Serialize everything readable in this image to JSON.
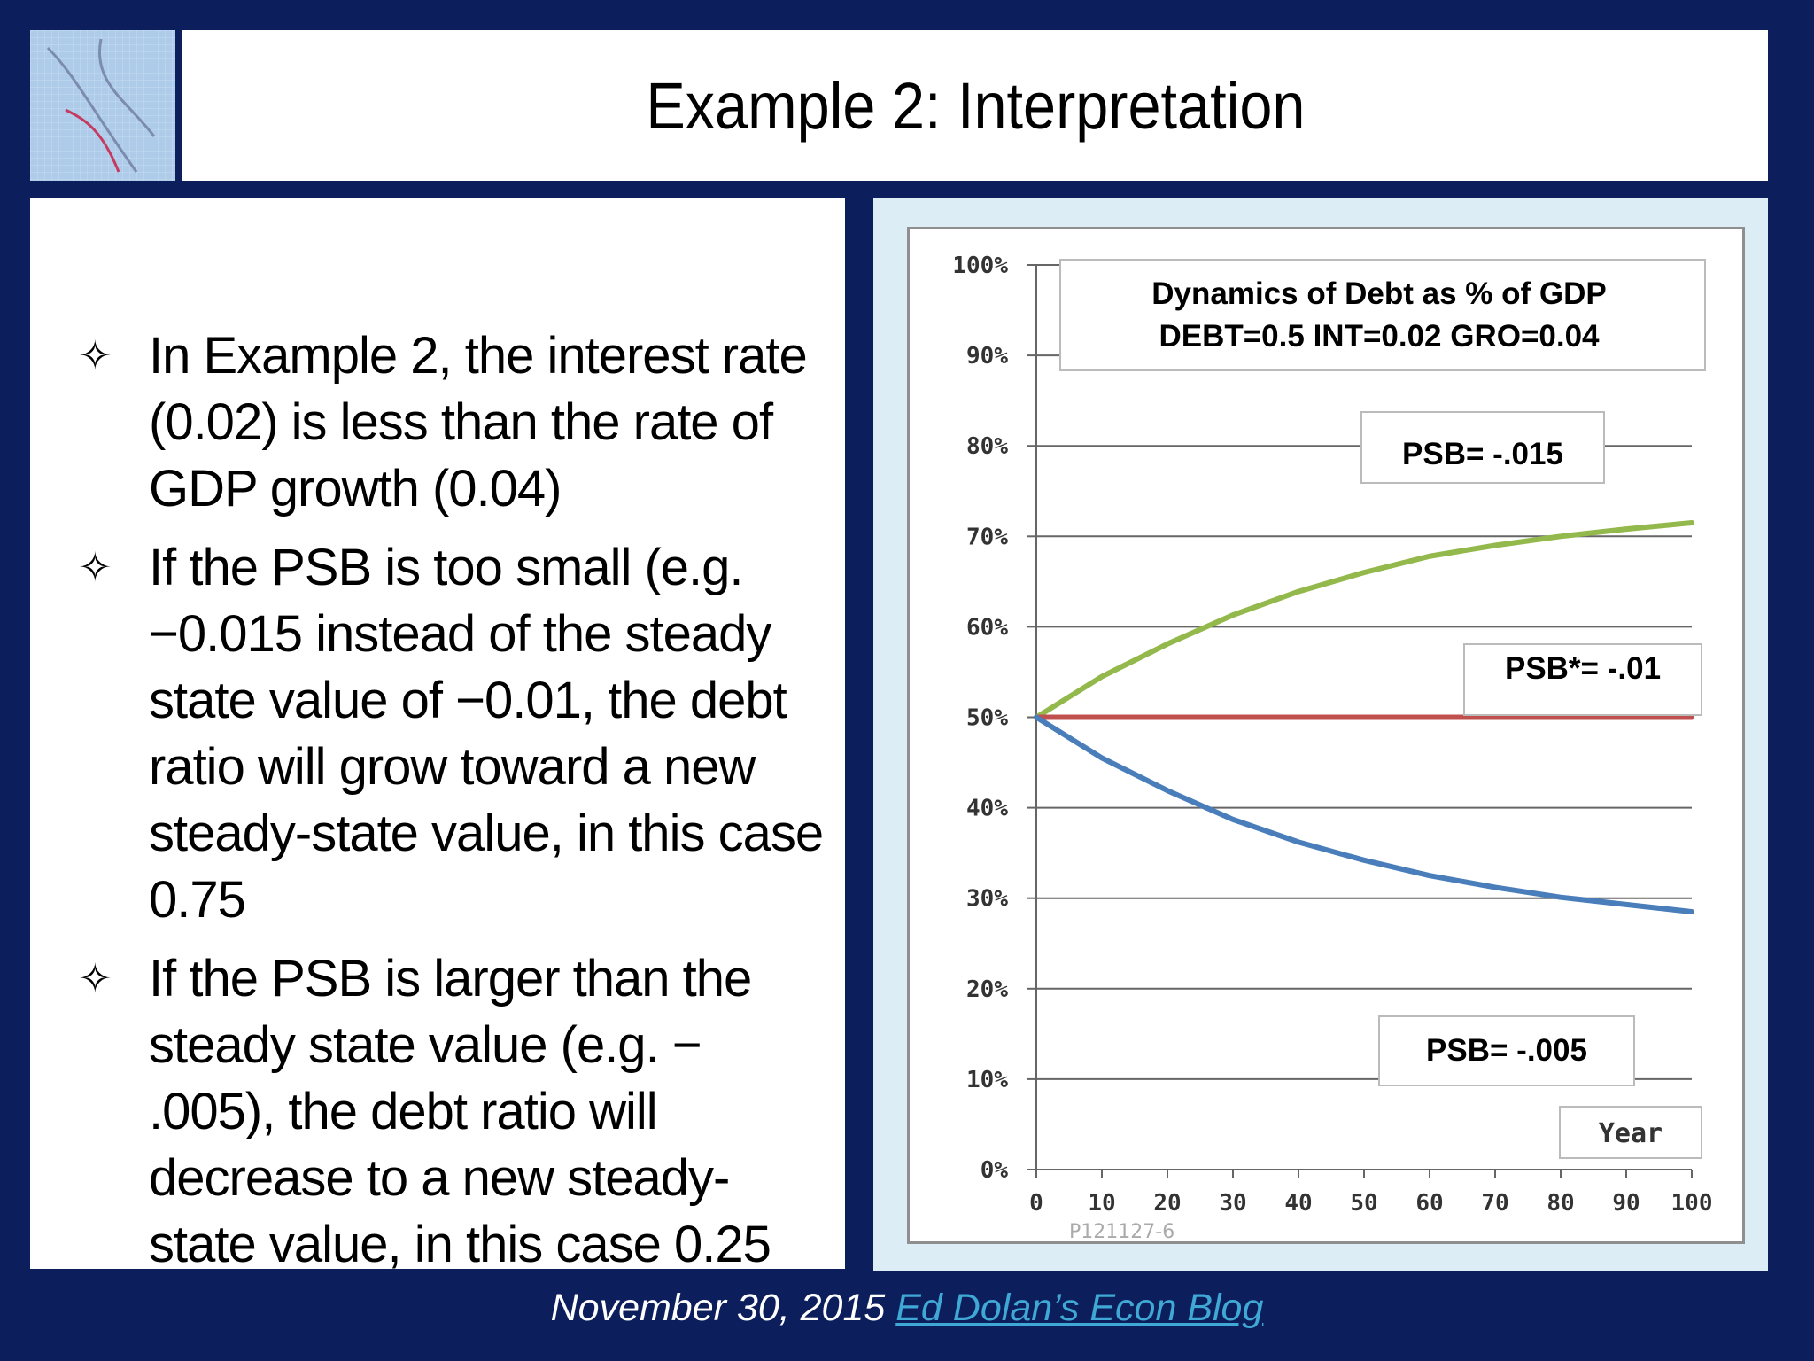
{
  "slide": {
    "title": "Example 2: Interpretation",
    "bullet_symbol": "✧",
    "bullets": [
      "In Example 2, the interest rate (0.02) is less than the rate of GDP growth (0.04)",
      "If the PSB is too small (e.g. −0.015 instead of the steady state value of −0.01, the debt ratio will grow toward a new steady-state value, in this case 0.75",
      "If the PSB is larger than the steady state value (e.g. − .005), the debt ratio will decrease to a new steady-state value, in this case 0.25"
    ],
    "footer_date": "November 30, 2015",
    "footer_link": "Ed Dolan’s Econ Blog"
  },
  "chart_data": {
    "type": "line",
    "title": "Dynamics of Debt as % of GDP",
    "subtitle": "DEBT=0.5 INT=0.02 GRO=0.04",
    "xlabel": "Year",
    "ylabel": "",
    "xlim": [
      0,
      100
    ],
    "ylim": [
      0,
      100
    ],
    "x_ticks": [
      "0",
      "10",
      "20",
      "30",
      "40",
      "50",
      "60",
      "70",
      "80",
      "90",
      "100"
    ],
    "y_ticks": [
      "0%",
      "10%",
      "20%",
      "30%",
      "40%",
      "50%",
      "60%",
      "70%",
      "80%",
      "90%",
      "100%"
    ],
    "grid": true,
    "watermark": "P121127-6",
    "x": [
      0,
      10,
      20,
      30,
      40,
      50,
      60,
      70,
      80,
      90,
      100
    ],
    "series": [
      {
        "name": "PSB= -.015",
        "color": "#93b84b",
        "values": [
          50,
          54.5,
          58.1,
          61.3,
          63.9,
          66.0,
          67.8,
          69.0,
          70.0,
          70.8,
          71.5
        ]
      },
      {
        "name": "PSB*= -.01",
        "color": "#c0504d",
        "values": [
          50,
          50,
          50,
          50,
          50,
          50,
          50,
          50,
          50,
          50,
          50
        ]
      },
      {
        "name": "PSB= -.005",
        "color": "#4a7ebb",
        "values": [
          50,
          45.5,
          41.9,
          38.7,
          36.2,
          34.2,
          32.5,
          31.2,
          30.1,
          29.3,
          28.5
        ]
      }
    ]
  }
}
